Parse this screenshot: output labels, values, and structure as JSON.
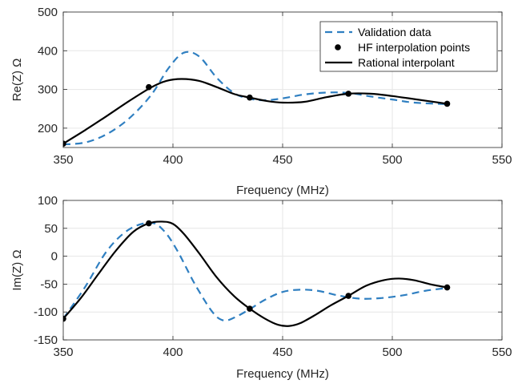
{
  "chart_data": [
    {
      "type": "line",
      "xlabel": "Frequency (MHz)",
      "ylabel": "Re(Z) Ω",
      "xlim": [
        350,
        550
      ],
      "ylim": [
        150,
        500
      ],
      "xticks": [
        350,
        400,
        450,
        500,
        550
      ],
      "yticks": [
        200,
        300,
        400,
        500
      ],
      "grid": true,
      "legend": "top-right",
      "series": [
        {
          "name": "Validation data",
          "style": "dashed",
          "color": "#2f7fc1",
          "x": [
            350,
            360,
            370,
            380,
            390,
            398,
            405,
            412,
            420,
            428,
            435,
            442,
            450,
            460,
            470,
            480,
            490,
            500,
            510,
            525
          ],
          "y": [
            158,
            163,
            185,
            225,
            285,
            355,
            395,
            385,
            330,
            290,
            276,
            272,
            277,
            287,
            292,
            291,
            282,
            274,
            266,
            262
          ]
        },
        {
          "name": "HF interpolation points",
          "style": "markers",
          "color": "#000000",
          "x": [
            350,
            389,
            435,
            480,
            525
          ],
          "y": [
            160,
            306,
            279,
            289,
            263
          ]
        },
        {
          "name": "Rational interpolant",
          "style": "solid",
          "color": "#000000",
          "x": [
            350,
            360,
            370,
            380,
            390,
            397,
            404,
            412,
            420,
            428,
            435,
            443,
            450,
            460,
            470,
            480,
            490,
            500,
            510,
            525
          ],
          "y": [
            160,
            195,
            232,
            270,
            305,
            322,
            327,
            322,
            306,
            288,
            279,
            270,
            266,
            268,
            280,
            289,
            289,
            283,
            275,
            263
          ]
        }
      ]
    },
    {
      "type": "line",
      "xlabel": "Frequency (MHz)",
      "ylabel": "Im(Z) Ω",
      "xlim": [
        350,
        550
      ],
      "ylim": [
        -150,
        100
      ],
      "xticks": [
        350,
        400,
        450,
        500,
        550
      ],
      "yticks": [
        -150,
        -100,
        -50,
        0,
        50,
        100
      ],
      "grid": true,
      "series": [
        {
          "name": "Validation data",
          "style": "dashed",
          "color": "#2f7fc1",
          "x": [
            350,
            360,
            370,
            380,
            390,
            396,
            402,
            410,
            418,
            423,
            428,
            435,
            442,
            450,
            458,
            466,
            475,
            485,
            495,
            505,
            515,
            525
          ],
          "y": [
            -112,
            -55,
            10,
            48,
            60,
            45,
            10,
            -50,
            -100,
            -115,
            -110,
            -95,
            -78,
            -64,
            -60,
            -62,
            -70,
            -76,
            -75,
            -70,
            -62,
            -57
          ]
        },
        {
          "name": "HF interpolation points",
          "style": "markers",
          "color": "#000000",
          "x": [
            350,
            389,
            435,
            480,
            525
          ],
          "y": [
            -112,
            59,
            -94,
            -71,
            -56
          ]
        },
        {
          "name": "Rational interpolant",
          "style": "solid",
          "color": "#000000",
          "x": [
            350,
            358,
            366,
            374,
            382,
            389,
            395,
            400,
            405,
            412,
            420,
            428,
            435,
            442,
            448,
            453,
            458,
            465,
            472,
            480,
            488,
            496,
            503,
            510,
            517,
            525
          ],
          "y": [
            -112,
            -75,
            -32,
            10,
            44,
            59,
            62,
            58,
            40,
            5,
            -38,
            -72,
            -94,
            -112,
            -123,
            -125,
            -120,
            -105,
            -88,
            -71,
            -53,
            -43,
            -40,
            -43,
            -50,
            -56
          ]
        }
      ]
    }
  ]
}
